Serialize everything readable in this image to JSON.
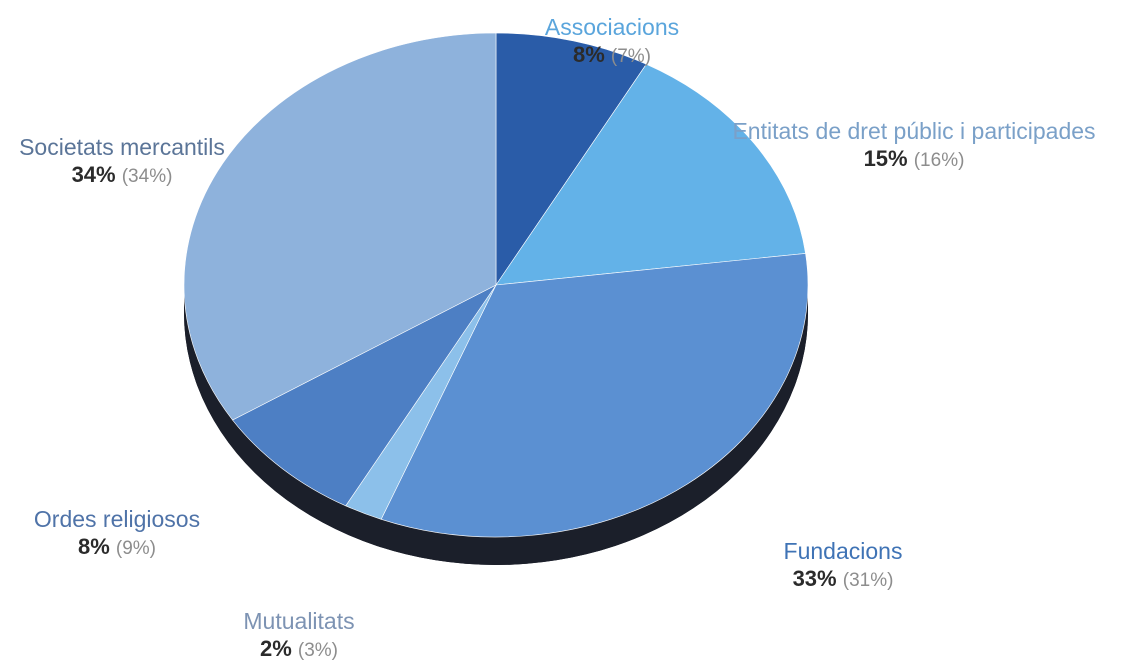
{
  "chart_data": {
    "type": "pie",
    "title": "",
    "slices": [
      {
        "label": "Associacions",
        "value": 8,
        "previous": "(7%)",
        "value_label": "8%",
        "color": "#2a5ca8",
        "label_color": "#5aa5dc"
      },
      {
        "label": "Entitats de dret públic i participades",
        "value": 15,
        "previous": "(16%)",
        "value_label": "15%",
        "color": "#63b2e8",
        "label_color": "#7aa0c8"
      },
      {
        "label": "Fundacions",
        "value": 33,
        "previous": "(31%)",
        "value_label": "33%",
        "color": "#5b90d2",
        "label_color": "#3f73b5"
      },
      {
        "label": "Mutualitats",
        "value": 2,
        "previous": "(3%)",
        "value_label": "2%",
        "color": "#8cc0ea",
        "label_color": "#7d93b3"
      },
      {
        "label": "Ordes religiosos",
        "value": 8,
        "previous": "(9%)",
        "value_label": "8%",
        "color": "#4d7fc4",
        "label_color": "#4f73a8"
      },
      {
        "label": "Societats mercantils",
        "value": 34,
        "previous": "(34%)",
        "value_label": "34%",
        "color": "#8eb2dc",
        "label_color": "#5b7598"
      }
    ]
  }
}
